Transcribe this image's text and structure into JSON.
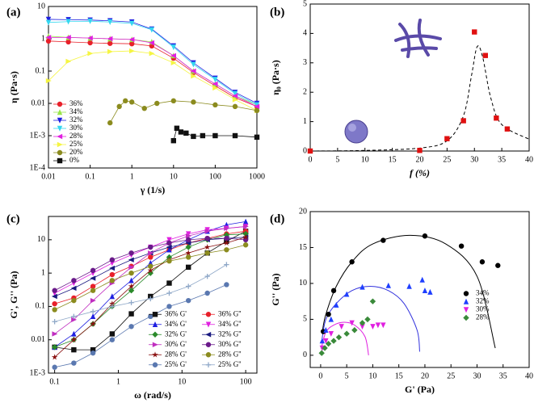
{
  "chart_data": [
    {
      "type": "line",
      "label": "(a)",
      "xlabel": "γ (1/s)",
      "ylabel": "η (Pa·s)",
      "xscale": "log",
      "yscale": "log",
      "xlim": [
        0.01,
        1000
      ],
      "ylim": [
        0.0001,
        10
      ],
      "xticks": [
        0.01,
        0.1,
        1,
        10,
        100,
        1000
      ],
      "yticks": [
        {
          "value": 0.0001,
          "label": "1E-4"
        },
        {
          "value": 0.001,
          "label": "1E-3"
        },
        0.01,
        0.1,
        1,
        10
      ],
      "legend": "lower left",
      "series": [
        {
          "name": "36%",
          "color": "#e8202a",
          "marker": "circle",
          "x": [
            0.01,
            0.03,
            0.1,
            0.3,
            1,
            3,
            10,
            30,
            100,
            300,
            1000
          ],
          "values": [
            0.85,
            0.8,
            0.75,
            0.72,
            0.7,
            0.6,
            0.25,
            0.09,
            0.035,
            0.015,
            0.008
          ]
        },
        {
          "name": "34%",
          "color": "#9ae64a",
          "marker": "triangle-up",
          "x": [
            0.01,
            0.03,
            0.1,
            0.3,
            1,
            3,
            10,
            30,
            100,
            300,
            1000
          ],
          "values": [
            1.2,
            1.1,
            1.05,
            1,
            0.95,
            0.8,
            0.3,
            0.1,
            0.04,
            0.017,
            0.009
          ]
        },
        {
          "name": "32%",
          "color": "#1f1fe0",
          "marker": "triangle-down",
          "x": [
            0.01,
            0.03,
            0.1,
            0.3,
            1,
            3,
            10,
            30,
            100,
            300,
            1000
          ],
          "values": [
            4,
            3.9,
            3.8,
            3.6,
            3.3,
            2,
            0.6,
            0.18,
            0.06,
            0.022,
            0.01
          ]
        },
        {
          "name": "30%",
          "color": "#35d7f0",
          "marker": "triangle-down",
          "x": [
            0.01,
            0.03,
            0.1,
            0.3,
            1,
            3,
            10,
            30,
            100,
            300,
            1000
          ],
          "values": [
            3.2,
            3.4,
            3.5,
            3.3,
            3,
            1.9,
            0.55,
            0.16,
            0.055,
            0.02,
            0.009
          ]
        },
        {
          "name": "28%",
          "color": "#e020e0",
          "marker": "triangle-left",
          "x": [
            0.01,
            0.03,
            0.1,
            0.3,
            1,
            3,
            10,
            30,
            100,
            300,
            1000
          ],
          "values": [
            1.1,
            1.1,
            1.05,
            1,
            0.95,
            0.75,
            0.3,
            0.1,
            0.04,
            0.017,
            0.008
          ]
        },
        {
          "name": "25%",
          "color": "#f5f542",
          "marker": "triangle-right",
          "x": [
            0.01,
            0.03,
            0.1,
            0.3,
            1,
            3,
            10,
            30,
            100,
            300,
            1000
          ],
          "values": [
            0.05,
            0.2,
            0.35,
            0.4,
            0.42,
            0.35,
            0.18,
            0.07,
            0.03,
            0.013,
            0.006
          ]
        },
        {
          "name": "20%",
          "color": "#8b8b1e",
          "marker": "circle",
          "x": [
            0.3,
            0.5,
            0.7,
            1,
            2,
            4,
            10,
            30,
            100,
            300,
            1000
          ],
          "values": [
            0.0025,
            0.008,
            0.012,
            0.011,
            0.007,
            0.01,
            0.012,
            0.011,
            0.009,
            0.008,
            0.006
          ]
        },
        {
          "name": "0%",
          "color": "#111111",
          "marker": "square",
          "x": [
            10,
            12,
            15,
            20,
            30,
            50,
            100,
            300,
            1000
          ],
          "values": [
            0.0007,
            0.0017,
            0.0013,
            0.0012,
            0.00095,
            0.001,
            0.001,
            0.001,
            0.0009
          ]
        }
      ]
    },
    {
      "type": "scatter",
      "label": "(b)",
      "xlabel": "f (%)",
      "ylabel": "η₀ (Pa·s)",
      "xlim": [
        0,
        40
      ],
      "ylim": [
        0,
        5
      ],
      "xticks": [
        0,
        5,
        10,
        15,
        20,
        25,
        30,
        35,
        40
      ],
      "yticks": [
        0,
        1,
        2,
        3,
        4,
        5
      ],
      "color": "#e01010",
      "marker": "square",
      "x": [
        0,
        20,
        25,
        28,
        30,
        32,
        34,
        36
      ],
      "values": [
        0,
        0.02,
        0.42,
        1.03,
        4.05,
        3.25,
        1.12,
        0.75
      ],
      "fit": {
        "color": "#000000",
        "dash": true,
        "x": [
          0,
          10,
          20,
          25,
          28,
          29.5,
          30.5,
          31.5,
          33,
          35,
          40
        ],
        "values": [
          0,
          0.02,
          0.1,
          0.35,
          1.2,
          2.6,
          3.55,
          3.2,
          1.8,
          0.9,
          0.4
        ]
      }
    },
    {
      "type": "line",
      "label": "(c)",
      "xlabel": "ω (rad/s)",
      "ylabel": "G', G'' (Pa)",
      "xscale": "log",
      "yscale": "log",
      "xlim": [
        0.08,
        150
      ],
      "ylim": [
        0.001,
        50
      ],
      "xticks": [
        0.1,
        1,
        10,
        100
      ],
      "yticks": [
        {
          "value": 0.001,
          "label": "1E-3"
        },
        0.01,
        0.1,
        1,
        10
      ],
      "legend": "lower right",
      "legend_columns": 2,
      "x": [
        0.1,
        0.2,
        0.4,
        0.8,
        1.6,
        3.2,
        6.3,
        12.6,
        25,
        50,
        100
      ],
      "series": [
        {
          "name": "36% G'",
          "color": "#111111",
          "marker": "square",
          "values": [
            0.006,
            0.005,
            0.005,
            0.015,
            0.06,
            0.2,
            0.5,
            1.5,
            4,
            9,
            18
          ]
        },
        {
          "name": "36% G''",
          "color": "#e8202a",
          "marker": "circle",
          "values": [
            0.12,
            0.18,
            0.4,
            0.9,
            1.6,
            3,
            5,
            8,
            11,
            15,
            18
          ]
        },
        {
          "name": "34% G'",
          "color": "#1f1fe0",
          "marker": "triangle-up",
          "values": [
            0.006,
            0.015,
            0.05,
            0.2,
            0.6,
            2,
            5,
            10,
            18,
            28,
            35
          ]
        },
        {
          "name": "34% G''",
          "color": "#e020e0",
          "marker": "triangle-down",
          "values": [
            0.25,
            0.5,
            1,
            2,
            3.5,
            6,
            10,
            15,
            20,
            22,
            25
          ]
        },
        {
          "name": "32% G'",
          "color": "#2a8a2a",
          "marker": "diamond",
          "values": [
            0.006,
            0.01,
            0.03,
            0.1,
            0.3,
            1,
            3,
            6,
            10,
            14,
            15
          ]
        },
        {
          "name": "32% G''",
          "color": "#1a1a80",
          "marker": "triangle-left",
          "values": [
            0.2,
            0.35,
            0.7,
            1.4,
            2.5,
            4,
            6,
            8,
            10,
            11,
            12
          ]
        },
        {
          "name": "30% G'",
          "color": "#c02ec0",
          "marker": "triangle-right",
          "values": [
            0.015,
            0.04,
            0.15,
            0.5,
            1.5,
            4,
            8,
            13,
            18,
            22,
            25
          ]
        },
        {
          "name": "30% G''",
          "color": "#6a1a8a",
          "marker": "circle",
          "values": [
            0.3,
            0.6,
            1.2,
            2.5,
            4,
            6,
            8,
            10,
            11,
            11,
            10
          ]
        },
        {
          "name": "28% G'",
          "color": "#8a1010",
          "marker": "star",
          "values": [
            0.003,
            0.01,
            0.03,
            0.12,
            0.4,
            1.2,
            2.5,
            4,
            6,
            8,
            12
          ]
        },
        {
          "name": "28% G''",
          "color": "#8b8b1e",
          "marker": "circle",
          "values": [
            0.08,
            0.15,
            0.3,
            0.6,
            1,
            1.6,
            2.3,
            3,
            4,
            5,
            7
          ]
        },
        {
          "name": "25% G'",
          "color": "#5a78b0",
          "marker": "circle",
          "values": [
            0.0015,
            0.002,
            0.004,
            0.01,
            0.025,
            0.05,
            0.1,
            0.15,
            0.25,
            0.45,
            null
          ]
        },
        {
          "name": "25% G''",
          "color": "#8fa8c8",
          "marker": "plus",
          "values": [
            0.035,
            0.05,
            0.07,
            0.1,
            0.13,
            0.17,
            0.25,
            0.4,
            0.8,
            1.8,
            null
          ]
        }
      ]
    },
    {
      "type": "scatter",
      "label": "(d)",
      "xlabel": "G' (Pa)",
      "ylabel": "G'' (Pa)",
      "xlim": [
        -2,
        40
      ],
      "ylim": [
        -1.7,
        20
      ],
      "xticks": [
        0,
        5,
        10,
        15,
        20,
        25,
        30,
        35,
        40
      ],
      "yticks": [
        0,
        5,
        10,
        15,
        20
      ],
      "legend": "center right",
      "series": [
        {
          "name": "34%",
          "color": "#000000",
          "marker": "circle",
          "x": [
            0.5,
            1.5,
            2.5,
            6,
            12,
            20,
            27,
            31,
            34
          ],
          "values": [
            3.3,
            5.7,
            9,
            13,
            16,
            16.6,
            15.2,
            13,
            12.5
          ]
        },
        {
          "name": "32%",
          "color": "#1f3fff",
          "marker": "triangle-up",
          "x": [
            0.3,
            1,
            2,
            3,
            5,
            8,
            13,
            17,
            19.5,
            20,
            21
          ],
          "values": [
            2,
            3.5,
            5,
            7,
            8.5,
            9.5,
            9.7,
            9.6,
            10.5,
            9,
            8.8
          ]
        },
        {
          "name": "30%",
          "color": "#e020e0",
          "marker": "triangle-down",
          "x": [
            0.3,
            1,
            2,
            4,
            6,
            8,
            10,
            11,
            12
          ],
          "values": [
            1,
            2,
            3,
            4,
            4.5,
            4,
            4,
            4.2,
            4.2
          ]
        },
        {
          "name": "28%",
          "color": "#3a8a3a",
          "marker": "diamond",
          "x": [
            0.2,
            0.8,
            1.5,
            2.5,
            3.5,
            5,
            6.5,
            8,
            9,
            10
          ],
          "values": [
            0.3,
            1,
            1.6,
            2,
            2.5,
            3,
            3.5,
            4.5,
            5,
            7.5
          ]
        }
      ],
      "fits": [
        {
          "color": "#000000",
          "x": [
            0.3,
            1,
            3,
            6,
            10,
            17,
            24,
            30,
            33.5
          ],
          "values": [
            3.2,
            5.7,
            9.6,
            13,
            15.5,
            16.7,
            15.5,
            11,
            1
          ]
        },
        {
          "color": "#3333dd",
          "x": [
            0.2,
            1,
            3,
            6,
            9.5,
            13,
            16,
            18.5,
            19
          ],
          "values": [
            1.9,
            5,
            7.2,
            9,
            9.6,
            9,
            7.2,
            3.5,
            0.5
          ]
        },
        {
          "color": "#e020e0",
          "x": [
            0.1,
            1,
            2.5,
            4.5,
            6.5,
            8.5,
            9.2
          ],
          "values": [
            0.9,
            3.2,
            4.2,
            4.6,
            4.2,
            2.6,
            0
          ]
        }
      ]
    }
  ]
}
